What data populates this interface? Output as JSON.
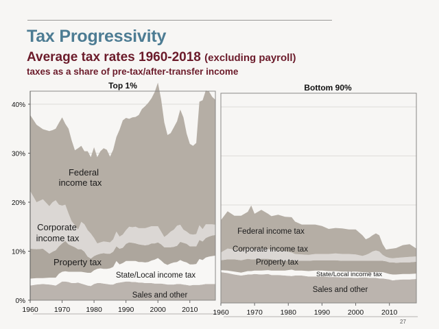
{
  "header": {
    "title": "Tax Progressivity",
    "subtitle": "Average tax rates 1960-2018",
    "subtitle_paren": "(excluding payroll)",
    "subsubtitle": "taxes as a share of pre-tax/after-transfer income"
  },
  "page_number": "27",
  "colors": {
    "title": "#4d7c93",
    "subtitle": "#6b1b2a",
    "federal": "#b5aea5",
    "corporate": "#dbd7d4",
    "property": "#ada69d",
    "state_local": "#f8f7f5",
    "sales": "#bbb4ae"
  },
  "chart_data": [
    {
      "type": "area",
      "stacked": true,
      "title": "Top 1%",
      "xlabel": "",
      "ylabel": "",
      "x_ticks": [
        "1960",
        "1970",
        "1980",
        "1990",
        "2000",
        "2010"
      ],
      "y_ticks": [
        "0%",
        "10%",
        "20%",
        "30%",
        "40%"
      ],
      "xlim": [
        1960,
        2018
      ],
      "ylim": [
        0,
        42
      ],
      "grid": true,
      "show_y_axis": true,
      "x": [
        1960,
        1962,
        1964,
        1966,
        1967,
        1968,
        1969,
        1970,
        1971,
        1972,
        1973,
        1974,
        1975,
        1976,
        1977,
        1978,
        1979,
        1980,
        1981,
        1982,
        1983,
        1984,
        1985,
        1986,
        1987,
        1988,
        1989,
        1990,
        1991,
        1992,
        1993,
        1994,
        1995,
        1996,
        1997,
        1998,
        1999,
        2000,
        2001,
        2002,
        2003,
        2004,
        2005,
        2006,
        2007,
        2008,
        2009,
        2010,
        2011,
        2012,
        2013,
        2014,
        2015,
        2016,
        2017,
        2018
      ],
      "series": [
        {
          "name": "Sales and other",
          "label": "Sales and other",
          "color_key": "sales",
          "values": [
            3.0,
            3.2,
            3.3,
            3.2,
            3.1,
            3.0,
            3.4,
            3.8,
            3.8,
            3.7,
            3.5,
            3.5,
            3.6,
            3.4,
            3.2,
            3.0,
            2.9,
            3.3,
            3.5,
            3.5,
            3.4,
            3.3,
            3.2,
            3.2,
            3.5,
            3.6,
            3.7,
            3.8,
            3.8,
            3.7,
            3.7,
            3.6,
            3.6,
            3.5,
            3.5,
            3.5,
            3.4,
            3.4,
            3.4,
            3.3,
            3.2,
            3.2,
            3.2,
            3.3,
            3.3,
            3.2,
            3.1,
            3.0,
            3.1,
            3.1,
            3.1,
            3.2,
            3.3,
            3.3,
            3.3,
            3.3
          ]
        },
        {
          "name": "State/Local income tax",
          "label": "State/Local income tax",
          "color_key": "state_local",
          "values": [
            1.4,
            1.3,
            1.2,
            1.4,
            1.5,
            1.6,
            2.0,
            2.0,
            2.1,
            2.1,
            2.3,
            2.3,
            2.2,
            2.4,
            2.5,
            2.6,
            2.7,
            2.8,
            2.9,
            3.0,
            3.0,
            3.1,
            3.3,
            3.6,
            4.5,
            3.7,
            3.9,
            4.2,
            4.2,
            4.3,
            4.3,
            4.2,
            4.2,
            4.2,
            4.3,
            4.6,
            4.9,
            5.2,
            4.7,
            4.2,
            4.0,
            4.3,
            4.5,
            4.5,
            4.9,
            4.7,
            4.6,
            4.3,
            4.2,
            4.3,
            5.3,
            5.0,
            5.4,
            5.6,
            5.7,
            5.8
          ]
        },
        {
          "name": "Property tax",
          "label": "Property tax",
          "color_key": "property",
          "values": [
            6.1,
            5.9,
            6.0,
            4.9,
            5.3,
            5.6,
            5.6,
            5.8,
            6.2,
            5.6,
            5.3,
            5.0,
            4.6,
            4.6,
            4.2,
            3.3,
            2.9,
            2.9,
            2.9,
            3.0,
            3.2,
            3.1,
            3.0,
            3.1,
            3.0,
            3.2,
            3.1,
            3.5,
            3.8,
            3.7,
            3.6,
            3.6,
            3.5,
            3.5,
            3.5,
            3.5,
            3.3,
            3.2,
            3.3,
            3.3,
            3.6,
            3.3,
            3.2,
            3.3,
            3.7,
            3.8,
            3.8,
            3.7,
            3.7,
            3.6,
            3.9,
            3.8,
            4.0,
            4.1,
            4.2,
            4.2
          ]
        },
        {
          "name": "Corporate income tax",
          "label": "Corporate income tax",
          "color_key": "corporate",
          "values": [
            11.8,
            9.6,
            10.1,
            9.7,
            10.1,
            10.2,
            8.5,
            7.7,
            7.4,
            6.3,
            5.0,
            4.5,
            4.0,
            5.6,
            5.6,
            5.4,
            5.1,
            3.7,
            2.3,
            2.3,
            2.4,
            2.4,
            2.3,
            2.5,
            3.0,
            2.5,
            2.7,
            2.8,
            3.2,
            3.2,
            3.4,
            3.3,
            3.4,
            3.5,
            3.6,
            3.5,
            3.5,
            3.3,
            2.6,
            2.1,
            2.6,
            3.2,
            3.5,
            4.1,
            3.5,
            2.7,
            2.5,
            2.5,
            2.4,
            2.5,
            3.0,
            2.5,
            2.8,
            2.5,
            2.3,
            2.1
          ]
        },
        {
          "name": "Federal income tax",
          "label": "Federal income tax",
          "color_key": "federal",
          "values": [
            15.5,
            15.8,
            14.3,
            15.3,
            14.7,
            14.6,
            16.7,
            18.0,
            16.5,
            17.3,
            16.5,
            15.3,
            16.6,
            15.5,
            14.9,
            16.1,
            15.6,
            18.5,
            17.6,
            18.6,
            19.0,
            18.8,
            17.5,
            18.3,
            19.3,
            21.8,
            23.3,
            22.9,
            22.0,
            22.4,
            22.4,
            23.1,
            24.3,
            24.9,
            25.4,
            26.1,
            27.4,
            29.3,
            27.0,
            23.4,
            20.3,
            20.1,
            20.9,
            21.3,
            23.5,
            22.9,
            20.0,
            18.4,
            18.1,
            18.6,
            25.2,
            26.3,
            27.3,
            27.1,
            26.0,
            25.5
          ]
        }
      ]
    },
    {
      "type": "area",
      "stacked": true,
      "title": "Bottom 90%",
      "xlabel": "",
      "ylabel": "",
      "x_ticks": [
        "1960",
        "1970",
        "1980",
        "1990",
        "2000",
        "2010"
      ],
      "y_ticks": [],
      "xlim": [
        1960,
        2018
      ],
      "ylim": [
        0,
        42
      ],
      "grid": true,
      "show_y_axis": false,
      "x": [
        1960,
        1962,
        1964,
        1966,
        1968,
        1969,
        1970,
        1972,
        1974,
        1975,
        1977,
        1979,
        1981,
        1982,
        1984,
        1986,
        1988,
        1990,
        1992,
        1994,
        1996,
        1998,
        2000,
        2002,
        2003,
        2004,
        2005,
        2006,
        2007,
        2008,
        2009,
        2010,
        2011,
        2012,
        2014,
        2016,
        2018
      ],
      "series": [
        {
          "name": "Sales and other",
          "label": "Sales and other",
          "color_key": "sales",
          "values": [
            6.3,
            6.1,
            5.8,
            5.6,
            5.8,
            5.8,
            5.9,
            5.8,
            5.9,
            5.7,
            5.7,
            5.6,
            5.5,
            5.6,
            5.6,
            5.4,
            5.4,
            5.4,
            5.3,
            5.3,
            5.2,
            5.2,
            5.1,
            5.2,
            5.2,
            5.1,
            5.1,
            5.1,
            5.0,
            5.0,
            4.9,
            4.8,
            4.6,
            4.7,
            4.8,
            4.8,
            4.9
          ]
        },
        {
          "name": "State/Local income tax",
          "label": "State/Local income tax",
          "color_key": "state_local",
          "values": [
            0.4,
            0.5,
            0.6,
            0.6,
            0.7,
            0.7,
            0.7,
            0.8,
            0.8,
            0.9,
            0.9,
            1.0,
            1.3,
            1.0,
            1.0,
            1.1,
            1.2,
            1.2,
            1.2,
            1.2,
            1.2,
            1.2,
            1.3,
            1.1,
            1.1,
            1.1,
            1.2,
            1.2,
            1.3,
            1.3,
            1.2,
            1.1,
            1.2,
            1.1,
            1.1,
            1.1,
            1.1
          ]
        },
        {
          "name": "Property tax",
          "label": "Property tax",
          "color_key": "property",
          "values": [
            2.0,
            2.3,
            2.5,
            2.5,
            2.5,
            2.4,
            2.3,
            2.4,
            2.3,
            2.3,
            2.1,
            2.0,
            1.9,
            2.0,
            2.0,
            2.1,
            2.1,
            2.1,
            2.2,
            2.2,
            2.2,
            2.2,
            2.2,
            2.3,
            2.3,
            2.4,
            2.3,
            2.3,
            2.3,
            2.3,
            2.4,
            2.4,
            2.5,
            2.4,
            2.4,
            2.4,
            2.4
          ]
        },
        {
          "name": "Corporate income tax",
          "label": "Corporate income tax",
          "color_key": "corporate",
          "values": [
            1.6,
            2.2,
            2.0,
            1.9,
            2.0,
            2.2,
            1.9,
            2.1,
            2.0,
            2.0,
            2.0,
            2.0,
            1.6,
            1.4,
            1.3,
            1.2,
            1.3,
            1.3,
            1.3,
            1.4,
            1.4,
            1.4,
            1.3,
            1.0,
            1.2,
            1.5,
            1.9,
            2.1,
            1.9,
            1.2,
            0.9,
            0.9,
            0.8,
            1.0,
            1.0,
            1.1,
            1.1
          ]
        },
        {
          "name": "Federal income tax",
          "label": "Federal income tax",
          "color_key": "federal",
          "values": [
            6.6,
            7.6,
            6.9,
            7.2,
            7.6,
            8.8,
            7.4,
            7.9,
            7.2,
            6.8,
            7.3,
            7.0,
            7.2,
            6.6,
            6.1,
            6.2,
            6.0,
            5.7,
            5.1,
            5.2,
            5.2,
            5.0,
            5.1,
            4.2,
            3.2,
            3.2,
            3.3,
            3.5,
            3.3,
            2.2,
            1.5,
            1.8,
            2.0,
            2.0,
            2.5,
            2.6,
            1.6
          ]
        }
      ]
    }
  ],
  "annotations_top1": [
    "Federal",
    "income tax",
    "Corporate",
    "income tax",
    "Property tax",
    "State/Local income tax",
    "Sales and other"
  ],
  "annotations_bottom90": [
    "Federal income tax",
    "Corporate income tax",
    "Property tax",
    "State/Local income tax",
    "Sales and other"
  ]
}
